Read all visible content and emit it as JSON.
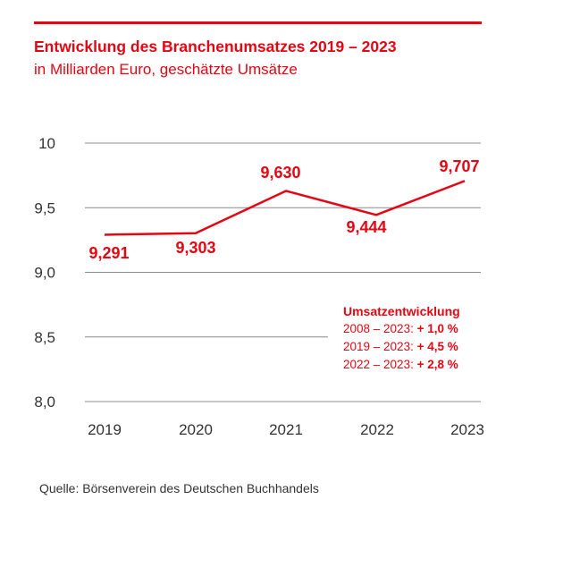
{
  "colors": {
    "accent": "#e30613",
    "grid": "#8c8c8c",
    "text": "#333333"
  },
  "header": {
    "title": "Entwicklung des Branchenumsatzes 2019 – 2023",
    "subtitle": "in Milliarden Euro, geschätzte Umsätze"
  },
  "annotation": {
    "heading": "Umsatzentwicklung",
    "rows": [
      {
        "period": "2008 – 2023:",
        "value": "+ 1,0 %"
      },
      {
        "period": "2019 – 2023:",
        "value": "+ 4,5 %"
      },
      {
        "period": "2022 – 2023:",
        "value": "+ 2,8 %"
      }
    ]
  },
  "source": "Quelle: Börsenverein des Deutschen Buchhandels",
  "chart_data": {
    "type": "line",
    "title": "Entwicklung des Branchenumsatzes 2019 – 2023",
    "subtitle": "in Milliarden Euro, geschätzte Umsätze",
    "categories": [
      "2019",
      "2020",
      "2021",
      "2022",
      "2023"
    ],
    "values": [
      9.291,
      9.303,
      9.63,
      9.444,
      9.707
    ],
    "data_labels": [
      "9,291",
      "9,303",
      "9,630",
      "9,444",
      "9,707"
    ],
    "ylim": [
      8.0,
      10.0
    ],
    "yticks": [
      10.0,
      9.5,
      9.0,
      8.5,
      8.0
    ],
    "ytick_labels": [
      "10",
      "9,5",
      "9,0",
      "8,5",
      "8,0"
    ],
    "grid": true,
    "xlabel": "",
    "ylabel": ""
  }
}
